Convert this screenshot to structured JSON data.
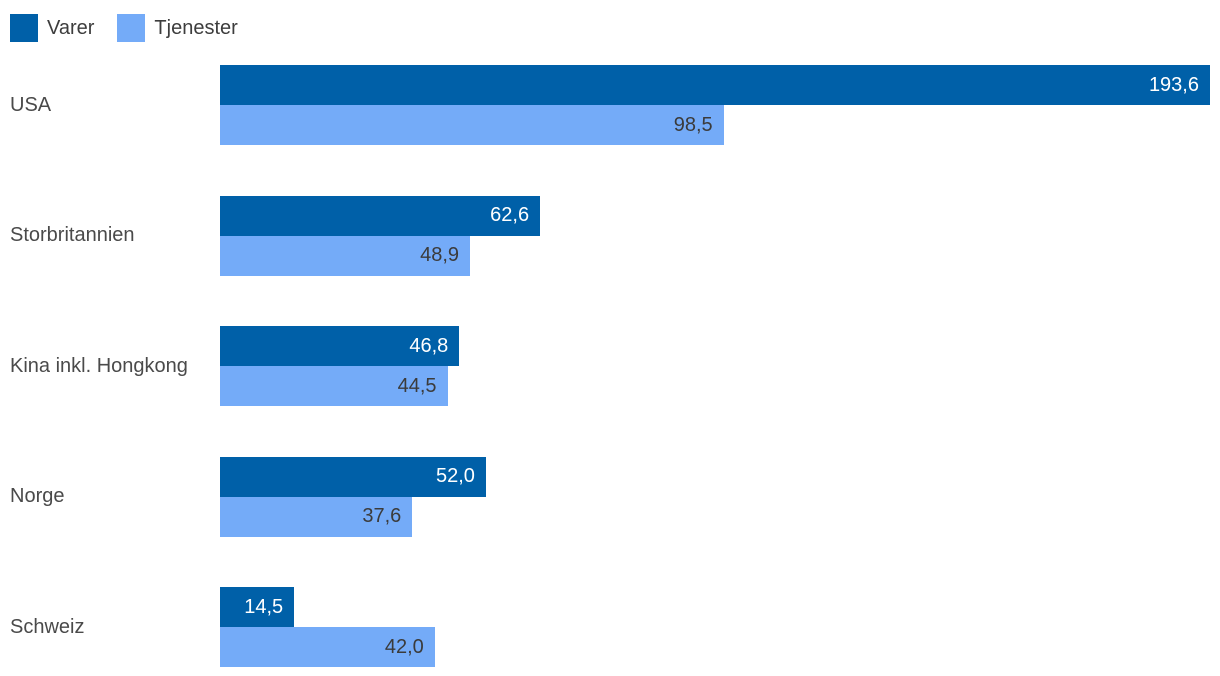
{
  "chart_data": {
    "type": "bar",
    "orientation": "horizontal",
    "title": "",
    "xlabel": "",
    "ylabel": "",
    "grid": false,
    "legend_position": "top-left",
    "value_labels": "inside-end",
    "decimal_separator": ",",
    "xlim": [
      0,
      193.6
    ],
    "categories": [
      "USA",
      "Storbritannien",
      "Kina inkl. Hongkong",
      "Norge",
      "Schweiz"
    ],
    "series": [
      {
        "name": "Varer",
        "color": "#0060a8",
        "values": [
          193.6,
          62.6,
          46.8,
          52.0,
          14.5
        ],
        "labels": [
          "193,6",
          "62,6",
          "46,8",
          "52,0",
          "14,5"
        ]
      },
      {
        "name": "Tjenester",
        "color": "#74abf8",
        "values": [
          98.5,
          48.9,
          44.5,
          37.6,
          42.0
        ],
        "labels": [
          "98,5",
          "48,9",
          "44,5",
          "37,6",
          "42,0"
        ]
      }
    ]
  }
}
